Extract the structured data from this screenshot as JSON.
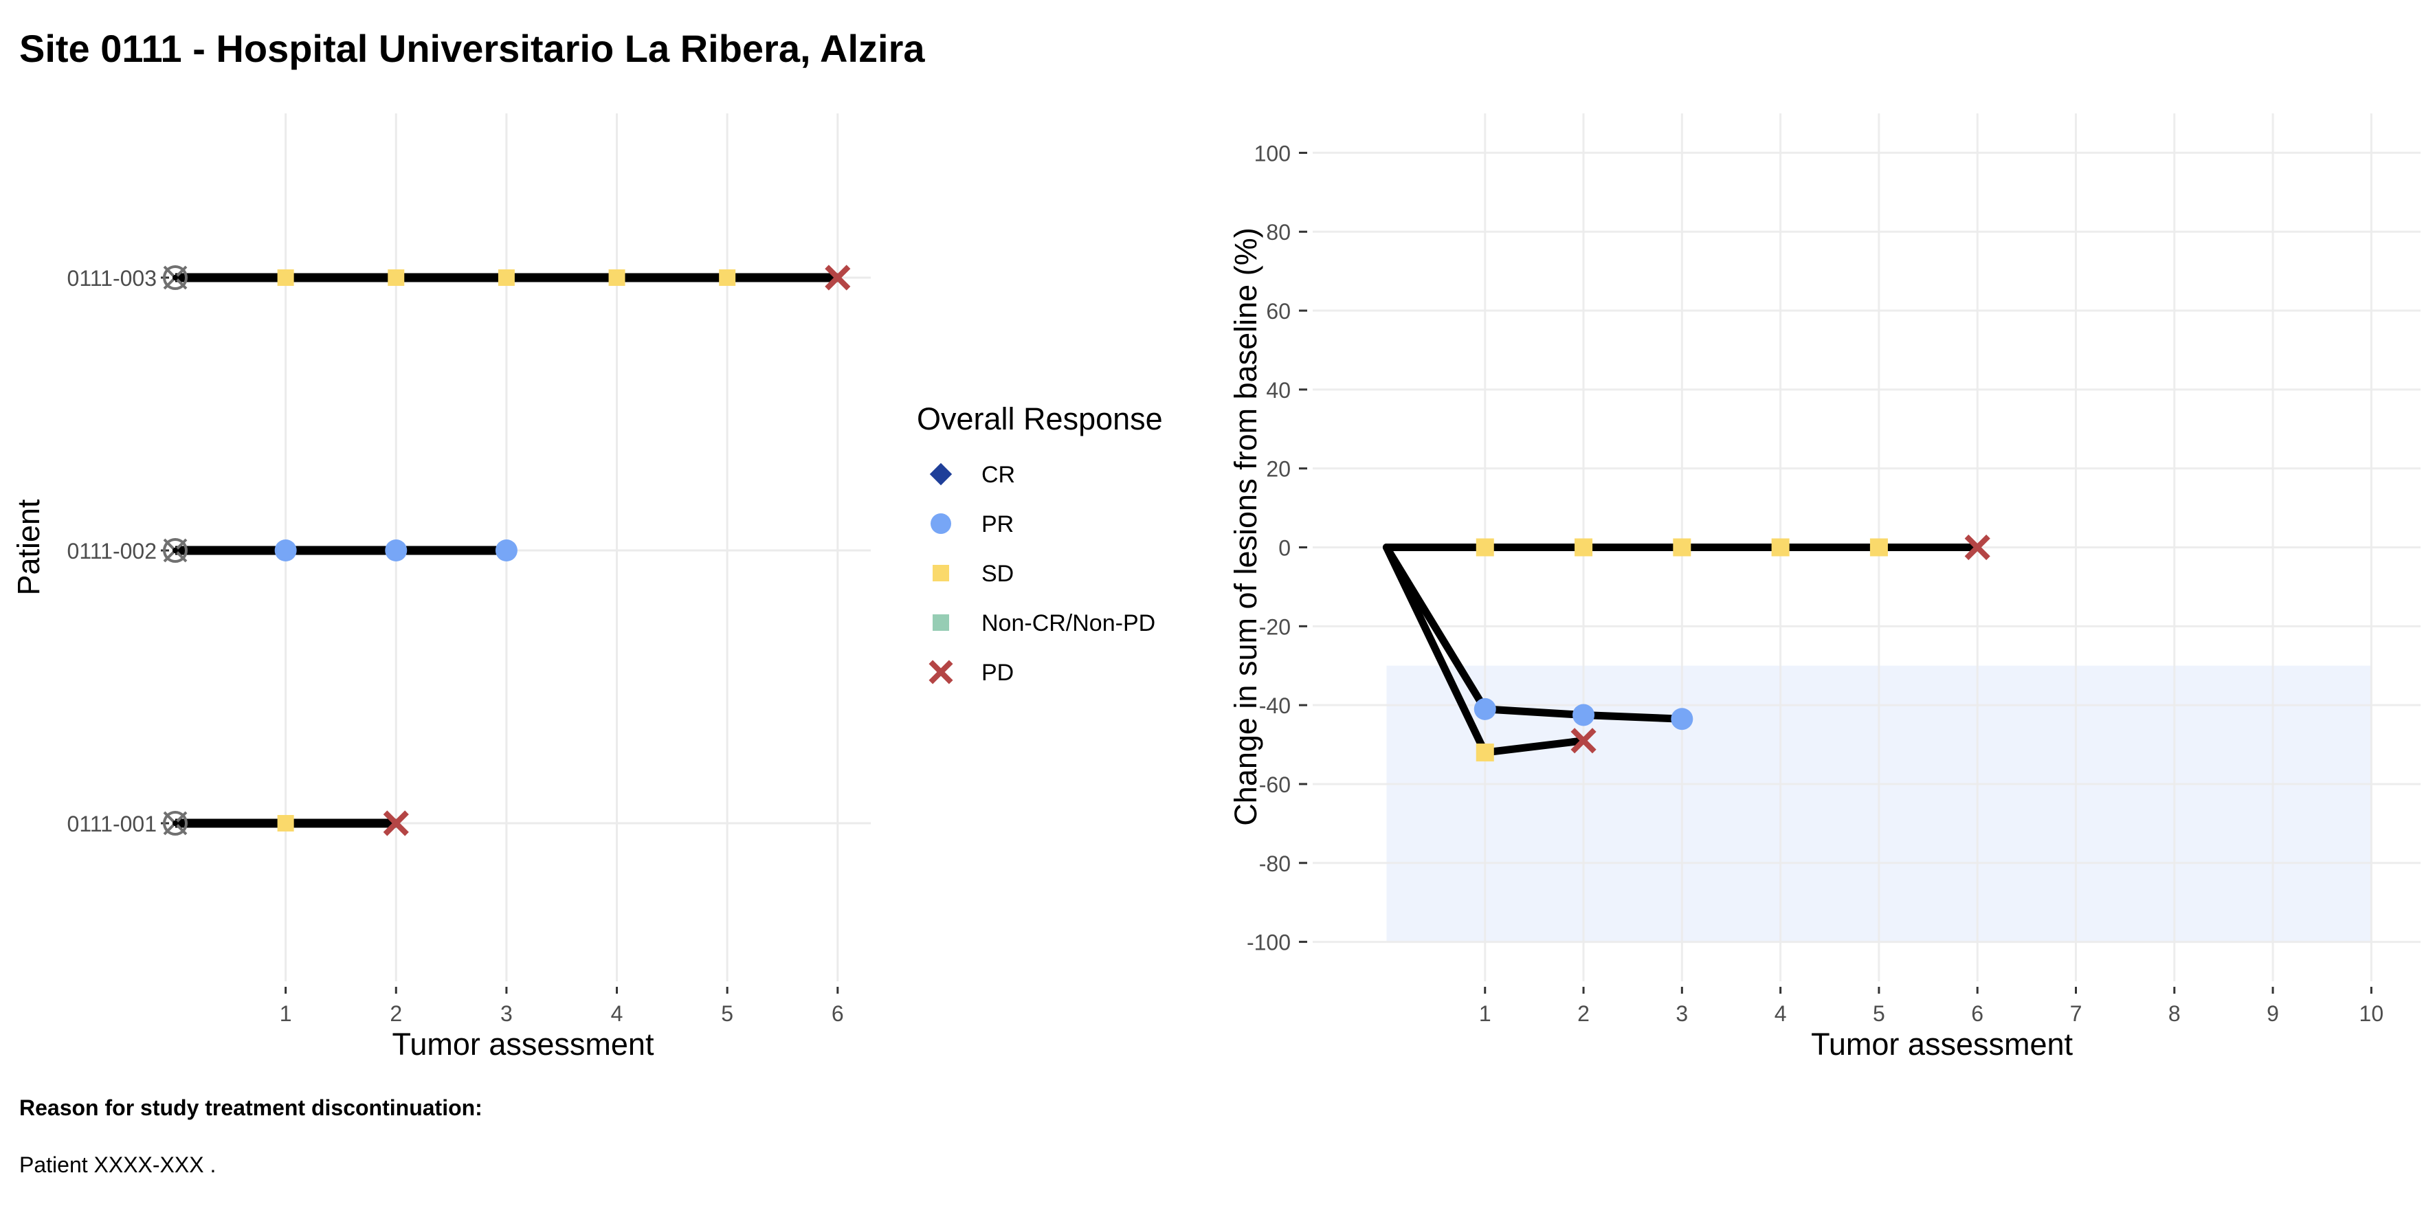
{
  "page": {
    "title": "Site 0111 - Hospital Universitario La Ribera, Alzira",
    "footer_heading": "Reason for study treatment discontinuation:",
    "footer_text": "Patient XXXX-XXX ."
  },
  "colors": {
    "CR": "#1f3f99",
    "PR": "#77a6f6",
    "SD": "#fad96b",
    "Non-CR/Non-PD": "#96cdb4",
    "PD": "#b44545",
    "line": "#000000",
    "grid": "#ebebeb",
    "shade": "#eef3fd"
  },
  "legend": {
    "title": "Overall Response",
    "items": [
      {
        "key": "CR",
        "label": "CR",
        "shape": "diamond"
      },
      {
        "key": "PR",
        "label": "PR",
        "shape": "circle"
      },
      {
        "key": "SD",
        "label": "SD",
        "shape": "square"
      },
      {
        "key": "Non-CR/Non-PD",
        "label": "Non-CR/Non-PD",
        "shape": "square"
      },
      {
        "key": "PD",
        "label": "PD",
        "shape": "cross"
      }
    ]
  },
  "chart_data": [
    {
      "type": "swimmer",
      "xlabel": "Tumor assessment",
      "ylabel": "Patient",
      "xlim": [
        0,
        6.3
      ],
      "xticks": [
        1,
        2,
        3,
        4,
        5,
        6
      ],
      "grid": true,
      "baseline_marker": "circle-x",
      "patients": [
        {
          "id": "0111-003",
          "assessments": [
            {
              "x": 1,
              "response": "SD"
            },
            {
              "x": 2,
              "response": "SD"
            },
            {
              "x": 3,
              "response": "SD"
            },
            {
              "x": 4,
              "response": "SD"
            },
            {
              "x": 5,
              "response": "SD"
            },
            {
              "x": 6,
              "response": "PD"
            }
          ]
        },
        {
          "id": "0111-002",
          "assessments": [
            {
              "x": 1,
              "response": "PR"
            },
            {
              "x": 2,
              "response": "PR"
            },
            {
              "x": 3,
              "response": "PR"
            }
          ]
        },
        {
          "id": "0111-001",
          "assessments": [
            {
              "x": 1,
              "response": "SD"
            },
            {
              "x": 2,
              "response": "PD"
            }
          ]
        }
      ]
    },
    {
      "type": "line",
      "xlabel": "Tumor assessment",
      "ylabel": "Change in sum of lesions from baseline (%)",
      "xlim": [
        -0.75,
        10.5
      ],
      "ylim": [
        -110,
        110
      ],
      "xticks": [
        1,
        2,
        3,
        4,
        5,
        6,
        7,
        8,
        9,
        10
      ],
      "yticks": [
        100,
        80,
        60,
        40,
        20,
        0,
        -20,
        -40,
        -60,
        -80,
        -100
      ],
      "grid": true,
      "shaded_region": {
        "x": [
          0,
          10
        ],
        "y": [
          -100,
          -30
        ]
      },
      "series": [
        {
          "points": [
            {
              "x": 0,
              "y": 0,
              "response": null
            },
            {
              "x": 1,
              "y": 0,
              "response": "SD"
            },
            {
              "x": 2,
              "y": 0,
              "response": "SD"
            },
            {
              "x": 3,
              "y": 0,
              "response": "SD"
            },
            {
              "x": 4,
              "y": 0,
              "response": "SD"
            },
            {
              "x": 5,
              "y": 0,
              "response": "SD"
            },
            {
              "x": 6,
              "y": 0,
              "response": "PD"
            }
          ]
        },
        {
          "points": [
            {
              "x": 0,
              "y": 0,
              "response": null
            },
            {
              "x": 1,
              "y": -41,
              "response": "PR"
            },
            {
              "x": 2,
              "y": -42.5,
              "response": "PR"
            },
            {
              "x": 3,
              "y": -43.5,
              "response": "PR"
            }
          ]
        },
        {
          "points": [
            {
              "x": 0,
              "y": 0,
              "response": null
            },
            {
              "x": 1,
              "y": -52,
              "response": "SD"
            },
            {
              "x": 2,
              "y": -49,
              "response": "PD"
            }
          ]
        }
      ]
    }
  ]
}
